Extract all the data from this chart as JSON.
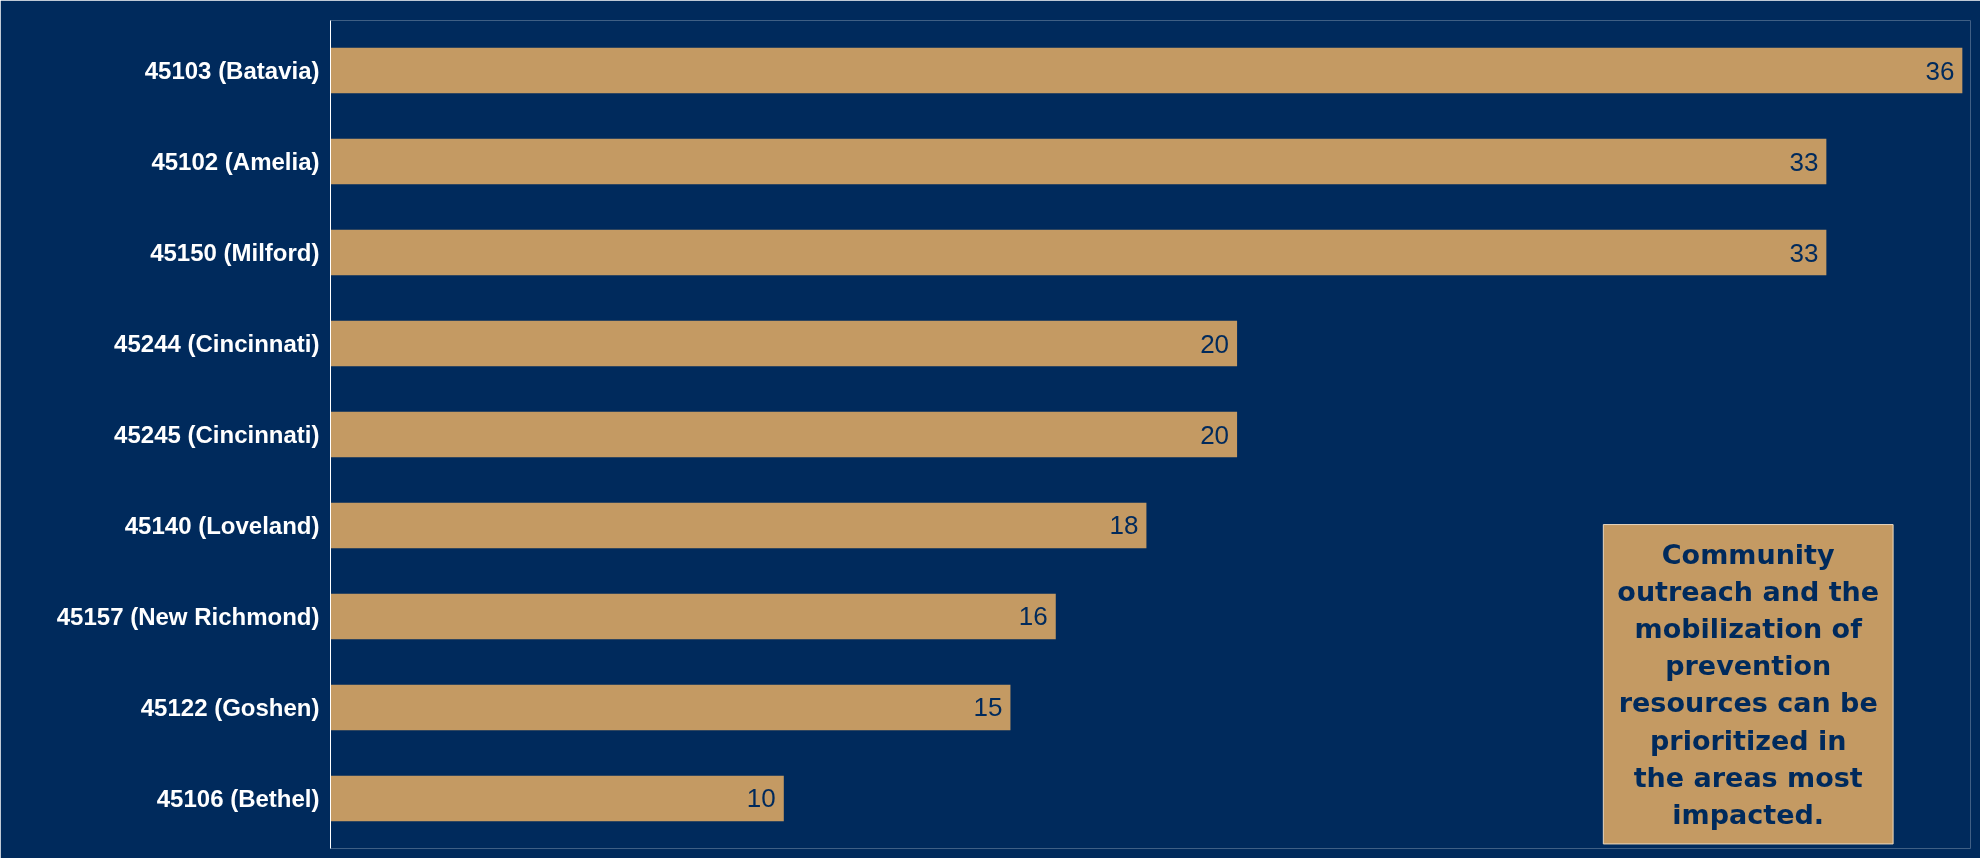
{
  "chart_data": {
    "type": "bar",
    "orientation": "horizontal",
    "data_labels": true,
    "grid": false,
    "tick_labels": "y",
    "categories": [
      "45103 (Batavia)",
      "45102 (Amelia)",
      "45150 (Milford)",
      "45244 (Cincinnati)",
      "45245 (Cincinnati)",
      "45140 (Loveland)",
      "45157 (New Richmond)",
      "45122 (Goshen)",
      "45106 (Bethel)"
    ],
    "series": [
      {
        "color": "#c49a63",
        "values": [
          36,
          33,
          33,
          20,
          20,
          18,
          16,
          15,
          10
        ]
      }
    ],
    "annotations": [
      "Community outreach and the mobilization of prevention resources can be prioritized in the areas most impacted."
    ]
  }
}
